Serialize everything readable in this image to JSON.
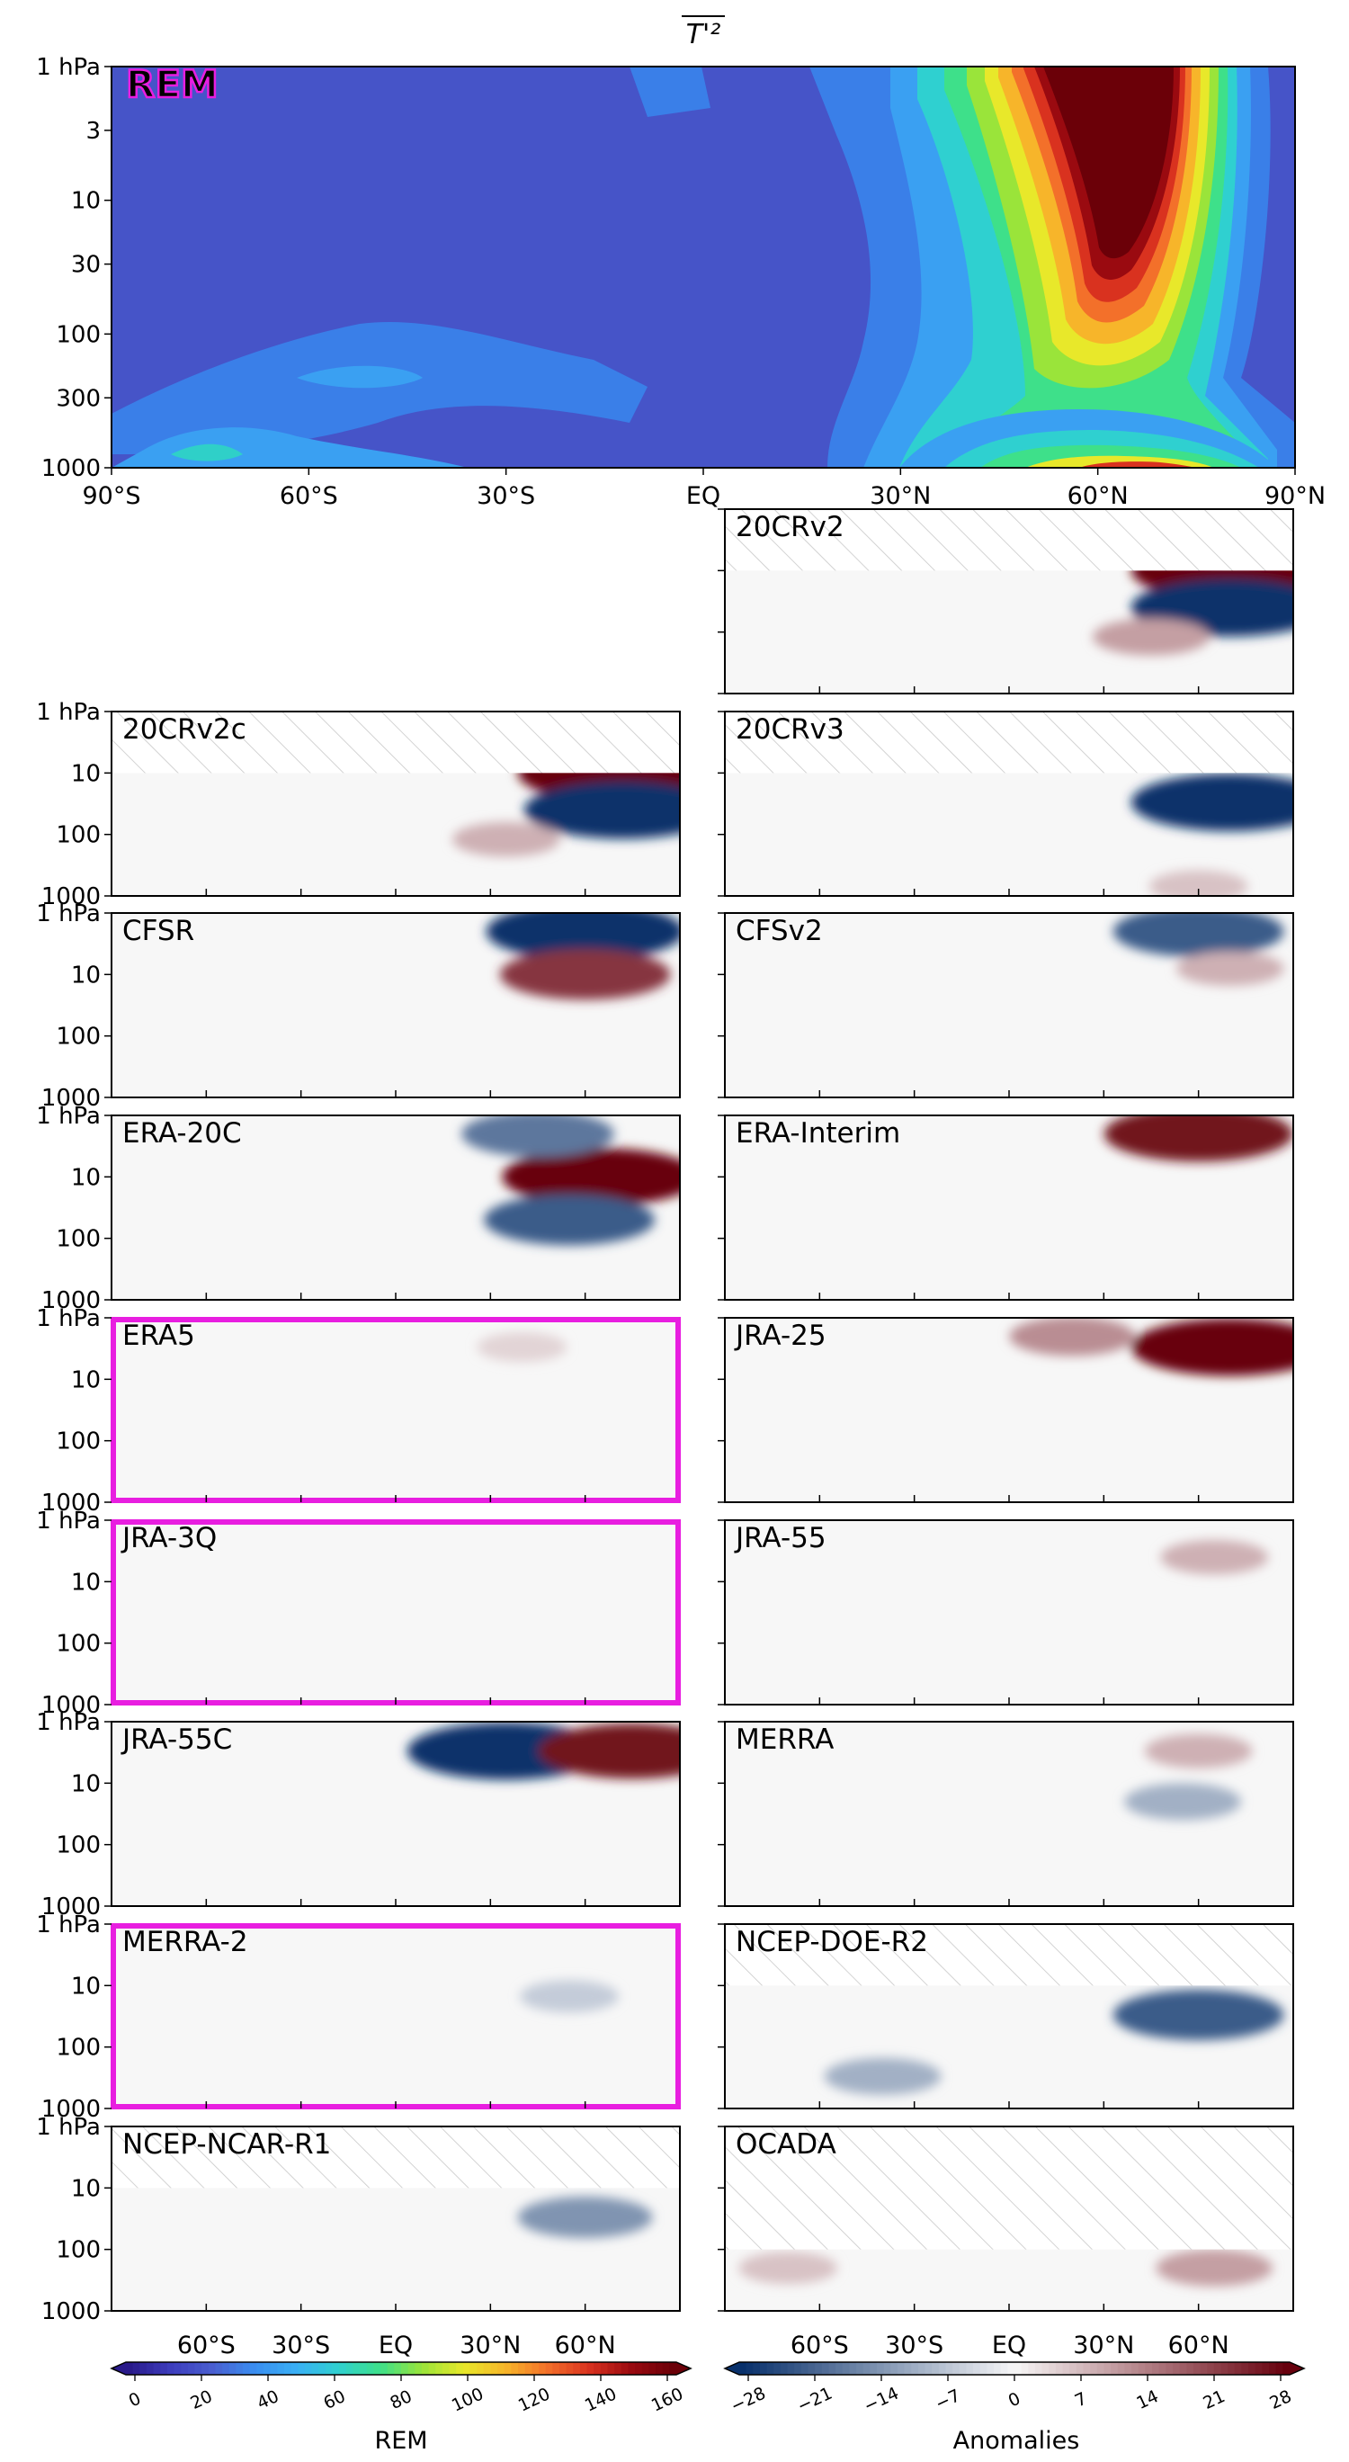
{
  "figure_title": "T'²",
  "colors": {
    "rem_scale": [
      "#2a1a8a",
      "#3d3dbd",
      "#4a5fd0",
      "#3a8ef0",
      "#3ab0f5",
      "#2fd0d0",
      "#3ee08a",
      "#9ae43a",
      "#e8e82a",
      "#f7b52a",
      "#f3702a",
      "#d9321f",
      "#9a0a10",
      "#6b0008"
    ],
    "anom_neg": "#08306b",
    "anom_zero": "#f7f7f7",
    "anom_pos": "#67000d",
    "highlight_frame": "#e81ee0"
  },
  "top_panel": {
    "label": "REM",
    "y_ticks": [
      "1 hPa",
      "3",
      "10",
      "30",
      "100",
      "300",
      "1000"
    ],
    "x_ticks": [
      "90°S",
      "60°S",
      "30°S",
      "EQ",
      "30°N",
      "60°N",
      "90°N"
    ]
  },
  "small_y_ticks": [
    "1 hPa",
    "10",
    "100",
    "1000"
  ],
  "panels": [
    {
      "name": "20CRv2",
      "highlight": false
    },
    {
      "name": "20CRv2c",
      "highlight": false
    },
    {
      "name": "20CRv3",
      "highlight": false
    },
    {
      "name": "CFSR",
      "highlight": false
    },
    {
      "name": "CFSv2",
      "highlight": false
    },
    {
      "name": "ERA-20C",
      "highlight": false
    },
    {
      "name": "ERA-Interim",
      "highlight": false
    },
    {
      "name": "ERA5",
      "highlight": true
    },
    {
      "name": "JRA-25",
      "highlight": false
    },
    {
      "name": "JRA-3Q",
      "highlight": true
    },
    {
      "name": "JRA-55",
      "highlight": false
    },
    {
      "name": "JRA-55C",
      "highlight": false
    },
    {
      "name": "MERRA",
      "highlight": false
    },
    {
      "name": "MERRA-2",
      "highlight": true
    },
    {
      "name": "NCEP-DOE-R2",
      "highlight": false
    },
    {
      "name": "NCEP-NCAR-R1",
      "highlight": false
    },
    {
      "name": "OCADA",
      "highlight": false
    }
  ],
  "bottom_x_ticks": [
    "60°S",
    "30°S",
    "EQ",
    "30°N",
    "60°N"
  ],
  "colorbar_left": {
    "label": "REM",
    "ticks": [
      "0",
      "20",
      "40",
      "60",
      "80",
      "100",
      "120",
      "140",
      "160"
    ]
  },
  "colorbar_right": {
    "label": "Anomalies",
    "ticks": [
      "−28",
      "−21",
      "−14",
      "−7",
      "0",
      "7",
      "14",
      "21",
      "28"
    ]
  },
  "chart_data": [
    {
      "type": "heatmap",
      "title": "T'²",
      "panel": "REM",
      "x": [
        "90°S",
        "60°S",
        "30°S",
        "EQ",
        "30°N",
        "60°N",
        "90°N"
      ],
      "xlim": [
        -90,
        90
      ],
      "ylim": [
        1000,
        1
      ],
      "yscale": "log",
      "colorbar_range": [
        0,
        160
      ],
      "colorbar_label": "REM",
      "features": [
        {
          "lat": 65,
          "p": 5,
          "value": 160
        },
        {
          "lat": 45,
          "p": 30,
          "value": 80
        },
        {
          "lat": 70,
          "p": 1000,
          "value": 140
        },
        {
          "lat": -80,
          "p": 700,
          "value": 30
        },
        {
          "lat": -10,
          "p": 1,
          "value": 20
        }
      ]
    },
    {
      "type": "heatmap",
      "title": "Anomalies",
      "xlim": [
        -90,
        90
      ],
      "ylim": [
        1000,
        1
      ],
      "yscale": "log",
      "colorbar_range": [
        -28,
        28
      ],
      "colorbar_label": "Anomalies",
      "series": [
        {
          "name": "20CRv2",
          "missing_above_hPa": 10,
          "features": [
            {
              "lat": 70,
              "p": 10,
              "value": 28
            },
            {
              "lat": 70,
              "p": 40,
              "value": -28
            },
            {
              "lat": 45,
              "p": 120,
              "value": 10
            }
          ]
        },
        {
          "name": "20CRv2c",
          "missing_above_hPa": 10,
          "features": [
            {
              "lat": 70,
              "p": 10,
              "value": 28
            },
            {
              "lat": 72,
              "p": 40,
              "value": -28
            },
            {
              "lat": 35,
              "p": 120,
              "value": 8
            }
          ]
        },
        {
          "name": "20CRv3",
          "missing_above_hPa": 10,
          "features": [
            {
              "lat": 70,
              "p": 30,
              "value": -28
            },
            {
              "lat": 60,
              "p": 700,
              "value": 6
            }
          ]
        },
        {
          "name": "CFSR",
          "features": [
            {
              "lat": 60,
              "p": 2,
              "value": -28
            },
            {
              "lat": 60,
              "p": 10,
              "value": 22
            }
          ]
        },
        {
          "name": "CFSv2",
          "features": [
            {
              "lat": 60,
              "p": 2,
              "value": -22
            },
            {
              "lat": 70,
              "p": 8,
              "value": 8
            }
          ]
        },
        {
          "name": "ERA-20C",
          "features": [
            {
              "lat": 65,
              "p": 10,
              "value": 28
            },
            {
              "lat": 55,
              "p": 50,
              "value": -22
            },
            {
              "lat": 45,
              "p": 2,
              "value": -18
            }
          ]
        },
        {
          "name": "ERA-Interim",
          "features": [
            {
              "lat": 60,
              "p": 2,
              "value": 26
            }
          ]
        },
        {
          "name": "ERA5",
          "features": [
            {
              "lat": 40,
              "p": 3,
              "value": 4
            }
          ]
        },
        {
          "name": "JRA-25",
          "features": [
            {
              "lat": 70,
              "p": 3,
              "value": 28
            },
            {
              "lat": 20,
              "p": 2,
              "value": 12
            }
          ]
        },
        {
          "name": "JRA-3Q",
          "features": []
        },
        {
          "name": "JRA-55",
          "features": [
            {
              "lat": 65,
              "p": 4,
              "value": 8
            }
          ]
        },
        {
          "name": "JRA-55C",
          "features": [
            {
              "lat": 35,
              "p": 3,
              "value": -28
            },
            {
              "lat": 75,
              "p": 3,
              "value": 26
            }
          ]
        },
        {
          "name": "MERRA",
          "features": [
            {
              "lat": 60,
              "p": 3,
              "value": 8
            },
            {
              "lat": 55,
              "p": 20,
              "value": -10
            }
          ]
        },
        {
          "name": "MERRA-2",
          "features": [
            {
              "lat": 55,
              "p": 15,
              "value": -6
            }
          ]
        },
        {
          "name": "NCEP-DOE-R2",
          "missing_above_hPa": 10,
          "features": [
            {
              "lat": 60,
              "p": 30,
              "value": -22
            },
            {
              "lat": -40,
              "p": 300,
              "value": -10
            }
          ]
        },
        {
          "name": "NCEP-NCAR-R1",
          "missing_above_hPa": 10,
          "features": [
            {
              "lat": 60,
              "p": 30,
              "value": -14
            }
          ]
        },
        {
          "name": "OCADA",
          "missing_above_hPa": 100,
          "features": [
            {
              "lat": 65,
              "p": 200,
              "value": 10
            },
            {
              "lat": -70,
              "p": 200,
              "value": 6
            }
          ]
        }
      ]
    }
  ]
}
